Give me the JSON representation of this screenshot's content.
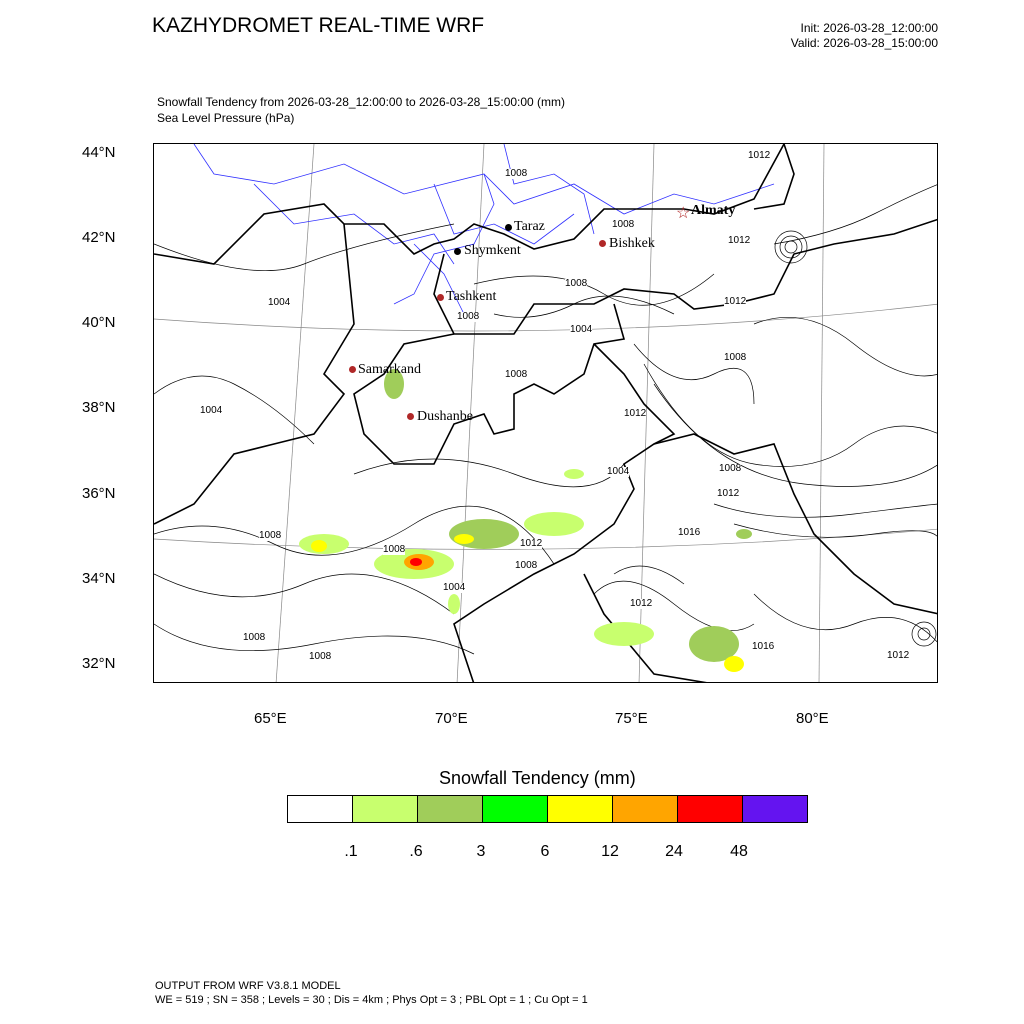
{
  "header": {
    "title": "KAZHYDROMET REAL-TIME WRF",
    "init": "Init: 2026-03-28_12:00:00",
    "valid": "Valid: 2026-03-28_15:00:00",
    "subtitle1": "Snowfall Tendency from 2026-03-28_12:00:00 to 2026-03-28_15:00:00   (mm)",
    "subtitle2": "Sea Level Pressure   (hPa)"
  },
  "axes": {
    "lat_labels": [
      "44°N",
      "42°N",
      "40°N",
      "38°N",
      "36°N",
      "34°N",
      "32°N"
    ],
    "lon_labels": [
      "65°E",
      "70°E",
      "75°E",
      "80°E"
    ]
  },
  "cities": [
    "Almaty",
    "Taraz",
    "Bishkek",
    "Shymkent",
    "Tashkent",
    "Samarkand",
    "Dushanbe"
  ],
  "contour_labels": [
    "1008",
    "1012",
    "1008",
    "1012",
    "1008",
    "1008",
    "1004",
    "1004",
    "1012",
    "1004",
    "1008",
    "1008",
    "1012",
    "1008",
    "1012",
    "1016",
    "1012",
    "1008",
    "1008",
    "1008",
    "1012",
    "1016",
    "1008",
    "1008",
    "1012",
    "1004",
    "1004"
  ],
  "colorbar": {
    "title": "Snowfall Tendency  (mm)",
    "labels": [
      ".1",
      ".6",
      "3",
      "6",
      "12",
      "24",
      "48"
    ],
    "colors": [
      "#ffffff",
      "#c8ff6e",
      "#a0cd5a",
      "#00ff00",
      "#ffff00",
      "#ffa500",
      "#ff0000",
      "#6414f0"
    ]
  },
  "footer": {
    "line1": "OUTPUT FROM WRF V3.8.1 MODEL",
    "line2": "WE = 519 ; SN = 358 ; Levels = 30 ; Dis = 4km ; Phys Opt = 3 ; PBL Opt = 1 ; Cu Opt = 1"
  }
}
